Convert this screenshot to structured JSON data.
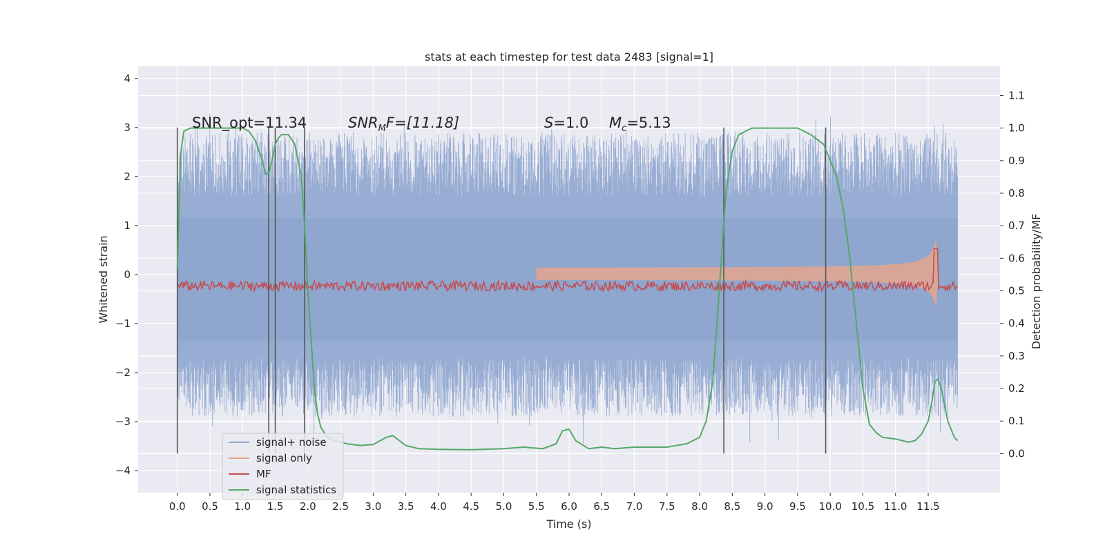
{
  "chart_data": {
    "type": "line",
    "title": "stats at each timestep for test data 2483 [signal=1]",
    "xlabel": "Time (s)",
    "ylabel": "Whitened strain",
    "ylabel_right": "Detection probability/MF",
    "xlim": [
      -0.6,
      12.6
    ],
    "ylim": [
      -4.45,
      4.25
    ],
    "ylim_right": [
      -0.12,
      1.19
    ],
    "x_ticks": [
      "0.0",
      "0.5",
      "1.0",
      "1.5",
      "2.0",
      "2.5",
      "3.0",
      "3.5",
      "4.0",
      "4.5",
      "5.0",
      "5.5",
      "6.0",
      "6.5",
      "7.0",
      "7.5",
      "8.0",
      "8.5",
      "9.0",
      "9.5",
      "10.0",
      "10.5",
      "11.0",
      "11.5"
    ],
    "y_ticks": [
      "4",
      "3",
      "2",
      "1",
      "0",
      "−1",
      "−2",
      "−3",
      "−4"
    ],
    "y_ticks_right": [
      "1.1",
      "1.0",
      "0.9",
      "0.8",
      "0.7",
      "0.6",
      "0.5",
      "0.4",
      "0.3",
      "0.2",
      "0.1",
      "0.0"
    ],
    "grid": true,
    "legend_position": "lower-left",
    "annotations": {
      "snr_opt": "SNR_opt=11.34",
      "snr_mf_italic": "SNR",
      "snr_mf_sub": "M",
      "snr_mf_tail": "F=[11.18]",
      "s_var": "S",
      "s_val": "=1.0",
      "mc_var": "M",
      "mc_sub": "c",
      "mc_val": "=5.13"
    },
    "markers_x": [
      0.0,
      1.4,
      1.5,
      1.95,
      8.37,
      9.93
    ],
    "series": [
      {
        "name": "signal+ noise",
        "color": "#8fa6cf",
        "description_range": [
          -3.5,
          3.6
        ]
      },
      {
        "name": "signal only",
        "color": "#e8a68a"
      },
      {
        "name": "MF",
        "color": "#c44e52",
        "axis": "right"
      },
      {
        "name": "signal statistics",
        "color": "#55a868",
        "axis": "right",
        "x": [
          0.0,
          0.05,
          0.1,
          0.2,
          0.3,
          0.5,
          0.8,
          1.0,
          1.1,
          1.2,
          1.3,
          1.35,
          1.4,
          1.45,
          1.5,
          1.55,
          1.6,
          1.7,
          1.8,
          1.9,
          1.95,
          2.0,
          2.05,
          2.1,
          2.15,
          2.2,
          2.3,
          2.4,
          2.5,
          2.6,
          2.8,
          3.0,
          3.2,
          3.3,
          3.4,
          3.5,
          3.7,
          4.0,
          4.5,
          5.0,
          5.3,
          5.6,
          5.8,
          5.9,
          6.0,
          6.1,
          6.3,
          6.5,
          6.7,
          7.0,
          7.5,
          7.8,
          8.0,
          8.1,
          8.2,
          8.3,
          8.4,
          8.5,
          8.6,
          8.8,
          9.0,
          9.5,
          9.7,
          9.9,
          10.0,
          10.1,
          10.2,
          10.3,
          10.4,
          10.5,
          10.6,
          10.7,
          10.8,
          11.0,
          11.2,
          11.3,
          11.4,
          11.5,
          11.55,
          11.6,
          11.65,
          11.7,
          11.8,
          11.9,
          11.95
        ],
        "y": [
          0.57,
          0.92,
          0.99,
          1.0,
          1.0,
          1.0,
          1.0,
          1.0,
          0.99,
          0.96,
          0.9,
          0.86,
          0.86,
          0.9,
          0.95,
          0.97,
          0.98,
          0.98,
          0.95,
          0.85,
          0.7,
          0.5,
          0.35,
          0.2,
          0.12,
          0.08,
          0.05,
          0.04,
          0.035,
          0.03,
          0.025,
          0.028,
          0.05,
          0.055,
          0.04,
          0.025,
          0.015,
          0.013,
          0.012,
          0.015,
          0.02,
          0.015,
          0.03,
          0.07,
          0.075,
          0.04,
          0.015,
          0.02,
          0.015,
          0.02,
          0.02,
          0.03,
          0.05,
          0.1,
          0.22,
          0.5,
          0.8,
          0.93,
          0.98,
          1.0,
          1.0,
          1.0,
          0.98,
          0.95,
          0.9,
          0.85,
          0.75,
          0.6,
          0.4,
          0.2,
          0.09,
          0.065,
          0.05,
          0.045,
          0.035,
          0.04,
          0.06,
          0.1,
          0.15,
          0.22,
          0.23,
          0.2,
          0.1,
          0.05,
          0.04
        ]
      }
    ]
  }
}
